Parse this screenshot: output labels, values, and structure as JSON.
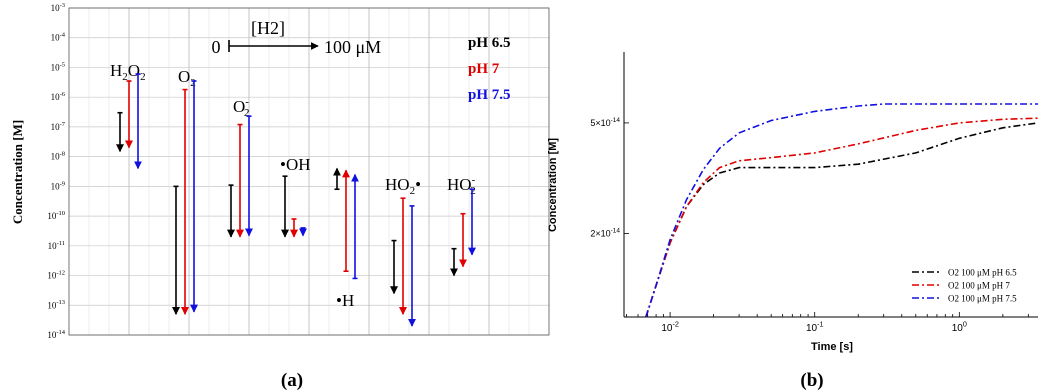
{
  "chart_data": [
    {
      "type": "arrow-range",
      "panel_label": "(a)",
      "ylabel": "Concentration [M]",
      "yscale": "log",
      "ylim": [
        1e-14,
        0.001
      ],
      "yticks": [
        "10^-14",
        "10^-13",
        "10^-12",
        "10^-11",
        "10^-10",
        "10^-9",
        "10^-8",
        "10^-7",
        "10^-6",
        "10^-5",
        "10^-4",
        "10^-3"
      ],
      "h2_scale": {
        "label": "[H2]",
        "start": "0",
        "end": "100 μM"
      },
      "legend": [
        {
          "name": "pH 6.5",
          "color": "#000000"
        },
        {
          "name": "pH 7",
          "color": "#e00000"
        },
        {
          "name": "pH 7.5",
          "color": "#1010e0"
        }
      ],
      "species": [
        {
          "name": "H2O2",
          "arrows": [
            {
              "ph": "pH 6.5",
              "start": 3e-07,
              "end": 1.5e-08
            },
            {
              "ph": "pH 7",
              "start": 3.5e-06,
              "end": 2e-08
            },
            {
              "ph": "pH 7.5",
              "start": 6e-06,
              "end": 4e-09
            }
          ]
        },
        {
          "name": "O2",
          "arrows": [
            {
              "ph": "pH 6.5",
              "start": 1e-09,
              "end": 5e-14
            },
            {
              "ph": "pH 7",
              "start": 1.8e-06,
              "end": 5e-14
            },
            {
              "ph": "pH 7.5",
              "start": 3.5e-06,
              "end": 6e-14
            }
          ]
        },
        {
          "name": "O2-",
          "arrows": [
            {
              "ph": "pH 6.5",
              "start": 1.1e-09,
              "end": 2e-11
            },
            {
              "ph": "pH 7",
              "start": 1.2e-07,
              "end": 2e-11
            },
            {
              "ph": "pH 7.5",
              "start": 2.3e-07,
              "end": 2.2e-11
            }
          ]
        },
        {
          "name": "•OH",
          "arrows": [
            {
              "ph": "pH 6.5",
              "start": 2.2e-09,
              "end": 2e-11
            },
            {
              "ph": "pH 7",
              "start": 8e-11,
              "end": 2e-11
            },
            {
              "ph": "pH 7.5",
              "start": 4e-11,
              "end": 2.2e-11
            }
          ]
        },
        {
          "name": "•H",
          "arrows": [
            {
              "ph": "pH 6.5",
              "start": 8e-10,
              "end": 4e-09
            },
            {
              "ph": "pH 7",
              "start": 1.4e-12,
              "end": 3.5e-09
            },
            {
              "ph": "pH 7.5",
              "start": 8e-13,
              "end": 2.5e-09
            }
          ]
        },
        {
          "name": "HO2•",
          "arrows": [
            {
              "ph": "pH 6.5",
              "start": 1.5e-11,
              "end": 2.5e-13
            },
            {
              "ph": "pH 7",
              "start": 4e-10,
              "end": 5e-14
            },
            {
              "ph": "pH 7.5",
              "start": 2.2e-10,
              "end": 2e-14
            }
          ]
        },
        {
          "name": "HO2-",
          "arrows": [
            {
              "ph": "pH 6.5",
              "start": 8e-12,
              "end": 1e-12
            },
            {
              "ph": "pH 7",
              "start": 1.2e-10,
              "end": 2e-12
            },
            {
              "ph": "pH 7.5",
              "start": 8e-10,
              "end": 5e-12
            }
          ]
        }
      ]
    },
    {
      "type": "line",
      "panel_label": "(b)",
      "xlabel": "Time [s]",
      "ylabel": "Concentration [M]",
      "xscale": "log",
      "yscale": "log",
      "xlim": [
        0.0048,
        3.5
      ],
      "ylim": [
        1e-14,
        9e-14
      ],
      "xticks": [
        {
          "v": 0.01,
          "label": "10^-2"
        },
        {
          "v": 0.1,
          "label": "10^-1"
        },
        {
          "v": 1,
          "label": "10^0"
        }
      ],
      "yticks": [
        {
          "v": 2e-14,
          "label": "2×10^-14"
        },
        {
          "v": 5e-14,
          "label": "5×10^-14"
        }
      ],
      "legend_position": "bottom-right",
      "series": [
        {
          "name": "O2 100 μM pH 6.5",
          "color": "#000000",
          "points": [
            [
              0.0068,
              1e-14
            ],
            [
              0.008,
              1.3e-14
            ],
            [
              0.01,
              1.85e-14
            ],
            [
              0.013,
              2.5e-14
            ],
            [
              0.017,
              3e-14
            ],
            [
              0.022,
              3.3e-14
            ],
            [
              0.03,
              3.45e-14
            ],
            [
              0.05,
              3.45e-14
            ],
            [
              0.1,
              3.45e-14
            ],
            [
              0.2,
              3.55e-14
            ],
            [
              0.5,
              3.9e-14
            ],
            [
              1,
              4.4e-14
            ],
            [
              2,
              4.8e-14
            ],
            [
              3.5,
              5e-14
            ]
          ]
        },
        {
          "name": "O2 100 μM pH 7",
          "color": "#e00000",
          "points": [
            [
              0.0068,
              1e-14
            ],
            [
              0.008,
              1.3e-14
            ],
            [
              0.01,
              1.85e-14
            ],
            [
              0.013,
              2.5e-14
            ],
            [
              0.017,
              3.05e-14
            ],
            [
              0.022,
              3.45e-14
            ],
            [
              0.03,
              3.65e-14
            ],
            [
              0.05,
              3.75e-14
            ],
            [
              0.1,
              3.9e-14
            ],
            [
              0.2,
              4.2e-14
            ],
            [
              0.5,
              4.7e-14
            ],
            [
              1,
              5e-14
            ],
            [
              2,
              5.15e-14
            ],
            [
              3.5,
              5.2e-14
            ]
          ]
        },
        {
          "name": "O2 100 μM pH 7.5",
          "color": "#1010e0",
          "points": [
            [
              0.0068,
              1e-14
            ],
            [
              0.008,
              1.3e-14
            ],
            [
              0.01,
              1.9e-14
            ],
            [
              0.013,
              2.65e-14
            ],
            [
              0.017,
              3.4e-14
            ],
            [
              0.022,
              4.05e-14
            ],
            [
              0.03,
              4.6e-14
            ],
            [
              0.05,
              5.1e-14
            ],
            [
              0.1,
              5.5e-14
            ],
            [
              0.2,
              5.75e-14
            ],
            [
              0.3,
              5.85e-14
            ],
            [
              0.5,
              5.85e-14
            ],
            [
              1,
              5.85e-14
            ],
            [
              3.5,
              5.85e-14
            ]
          ]
        }
      ]
    }
  ]
}
